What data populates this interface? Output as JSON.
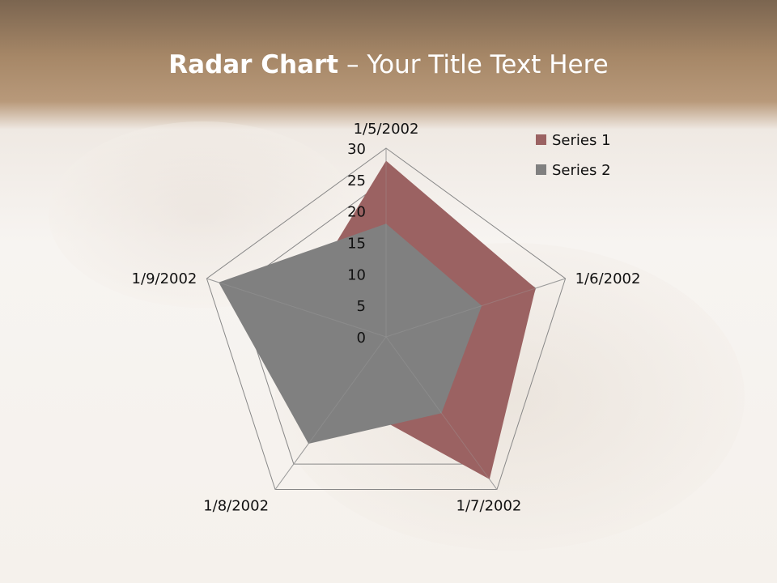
{
  "slide": {
    "title_bold": "Radar Chart",
    "title_rest": " – Your Title Text Here"
  },
  "chart_data": {
    "type": "radar",
    "categories": [
      "1/5/2002",
      "1/6/2002",
      "1/7/2002",
      "1/8/2002",
      "1/9/2002"
    ],
    "series": [
      {
        "name": "Series 1",
        "values": [
          28,
          25,
          28,
          12,
          15
        ],
        "color": "#9b6262"
      },
      {
        "name": "Series 2",
        "values": [
          18,
          16,
          15,
          21,
          28
        ],
        "color": "#808080"
      }
    ],
    "rlim": [
      0,
      30
    ],
    "ticks": [
      "0",
      "5",
      "10",
      "15",
      "20",
      "25",
      "30"
    ],
    "legend": "top-right"
  }
}
